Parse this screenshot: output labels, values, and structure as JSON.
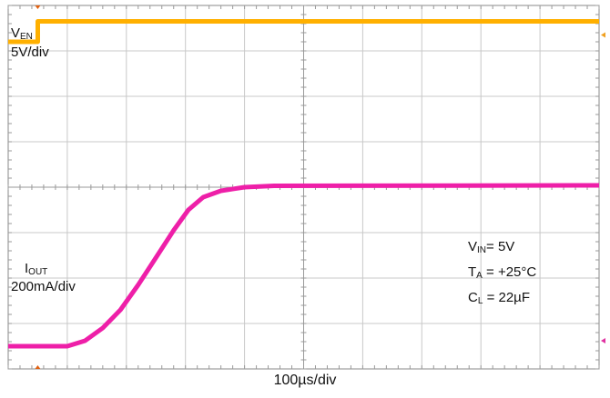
{
  "chart_data": {
    "type": "line",
    "xlabel": "100µs/div",
    "x_divisions": 10,
    "y_divisions": 8,
    "grid": true,
    "series": [
      {
        "name": "VEN",
        "color": "#ffb000",
        "points_div": [
          [
            0,
            7.2
          ],
          [
            0.5,
            7.2
          ],
          [
            0.5,
            7.65
          ],
          [
            10,
            7.65
          ]
        ]
      },
      {
        "name": "IOUT",
        "color": "#ee1fa8",
        "points_div": [
          [
            0,
            0.5
          ],
          [
            1.0,
            0.5
          ],
          [
            1.3,
            0.62
          ],
          [
            1.6,
            0.9
          ],
          [
            1.9,
            1.3
          ],
          [
            2.2,
            1.85
          ],
          [
            2.5,
            2.45
          ],
          [
            2.8,
            3.05
          ],
          [
            3.05,
            3.5
          ],
          [
            3.3,
            3.78
          ],
          [
            3.6,
            3.92
          ],
          [
            4.0,
            4.0
          ],
          [
            4.5,
            4.03
          ],
          [
            10,
            4.04
          ]
        ]
      }
    ],
    "channel_labels": {
      "ven_main": "V",
      "ven_sub": "EN",
      "ven_scale": "5V/div",
      "iout_main": "I",
      "iout_sub": "OUT",
      "iout_scale": "200mA/div"
    },
    "conditions": [
      {
        "main": "V",
        "sub": "IN",
        "value": "= 5V"
      },
      {
        "main": "T",
        "sub": "A",
        "value": " = +25°C"
      },
      {
        "main": "C",
        "sub": "L",
        "value": " = 22µF"
      }
    ]
  }
}
